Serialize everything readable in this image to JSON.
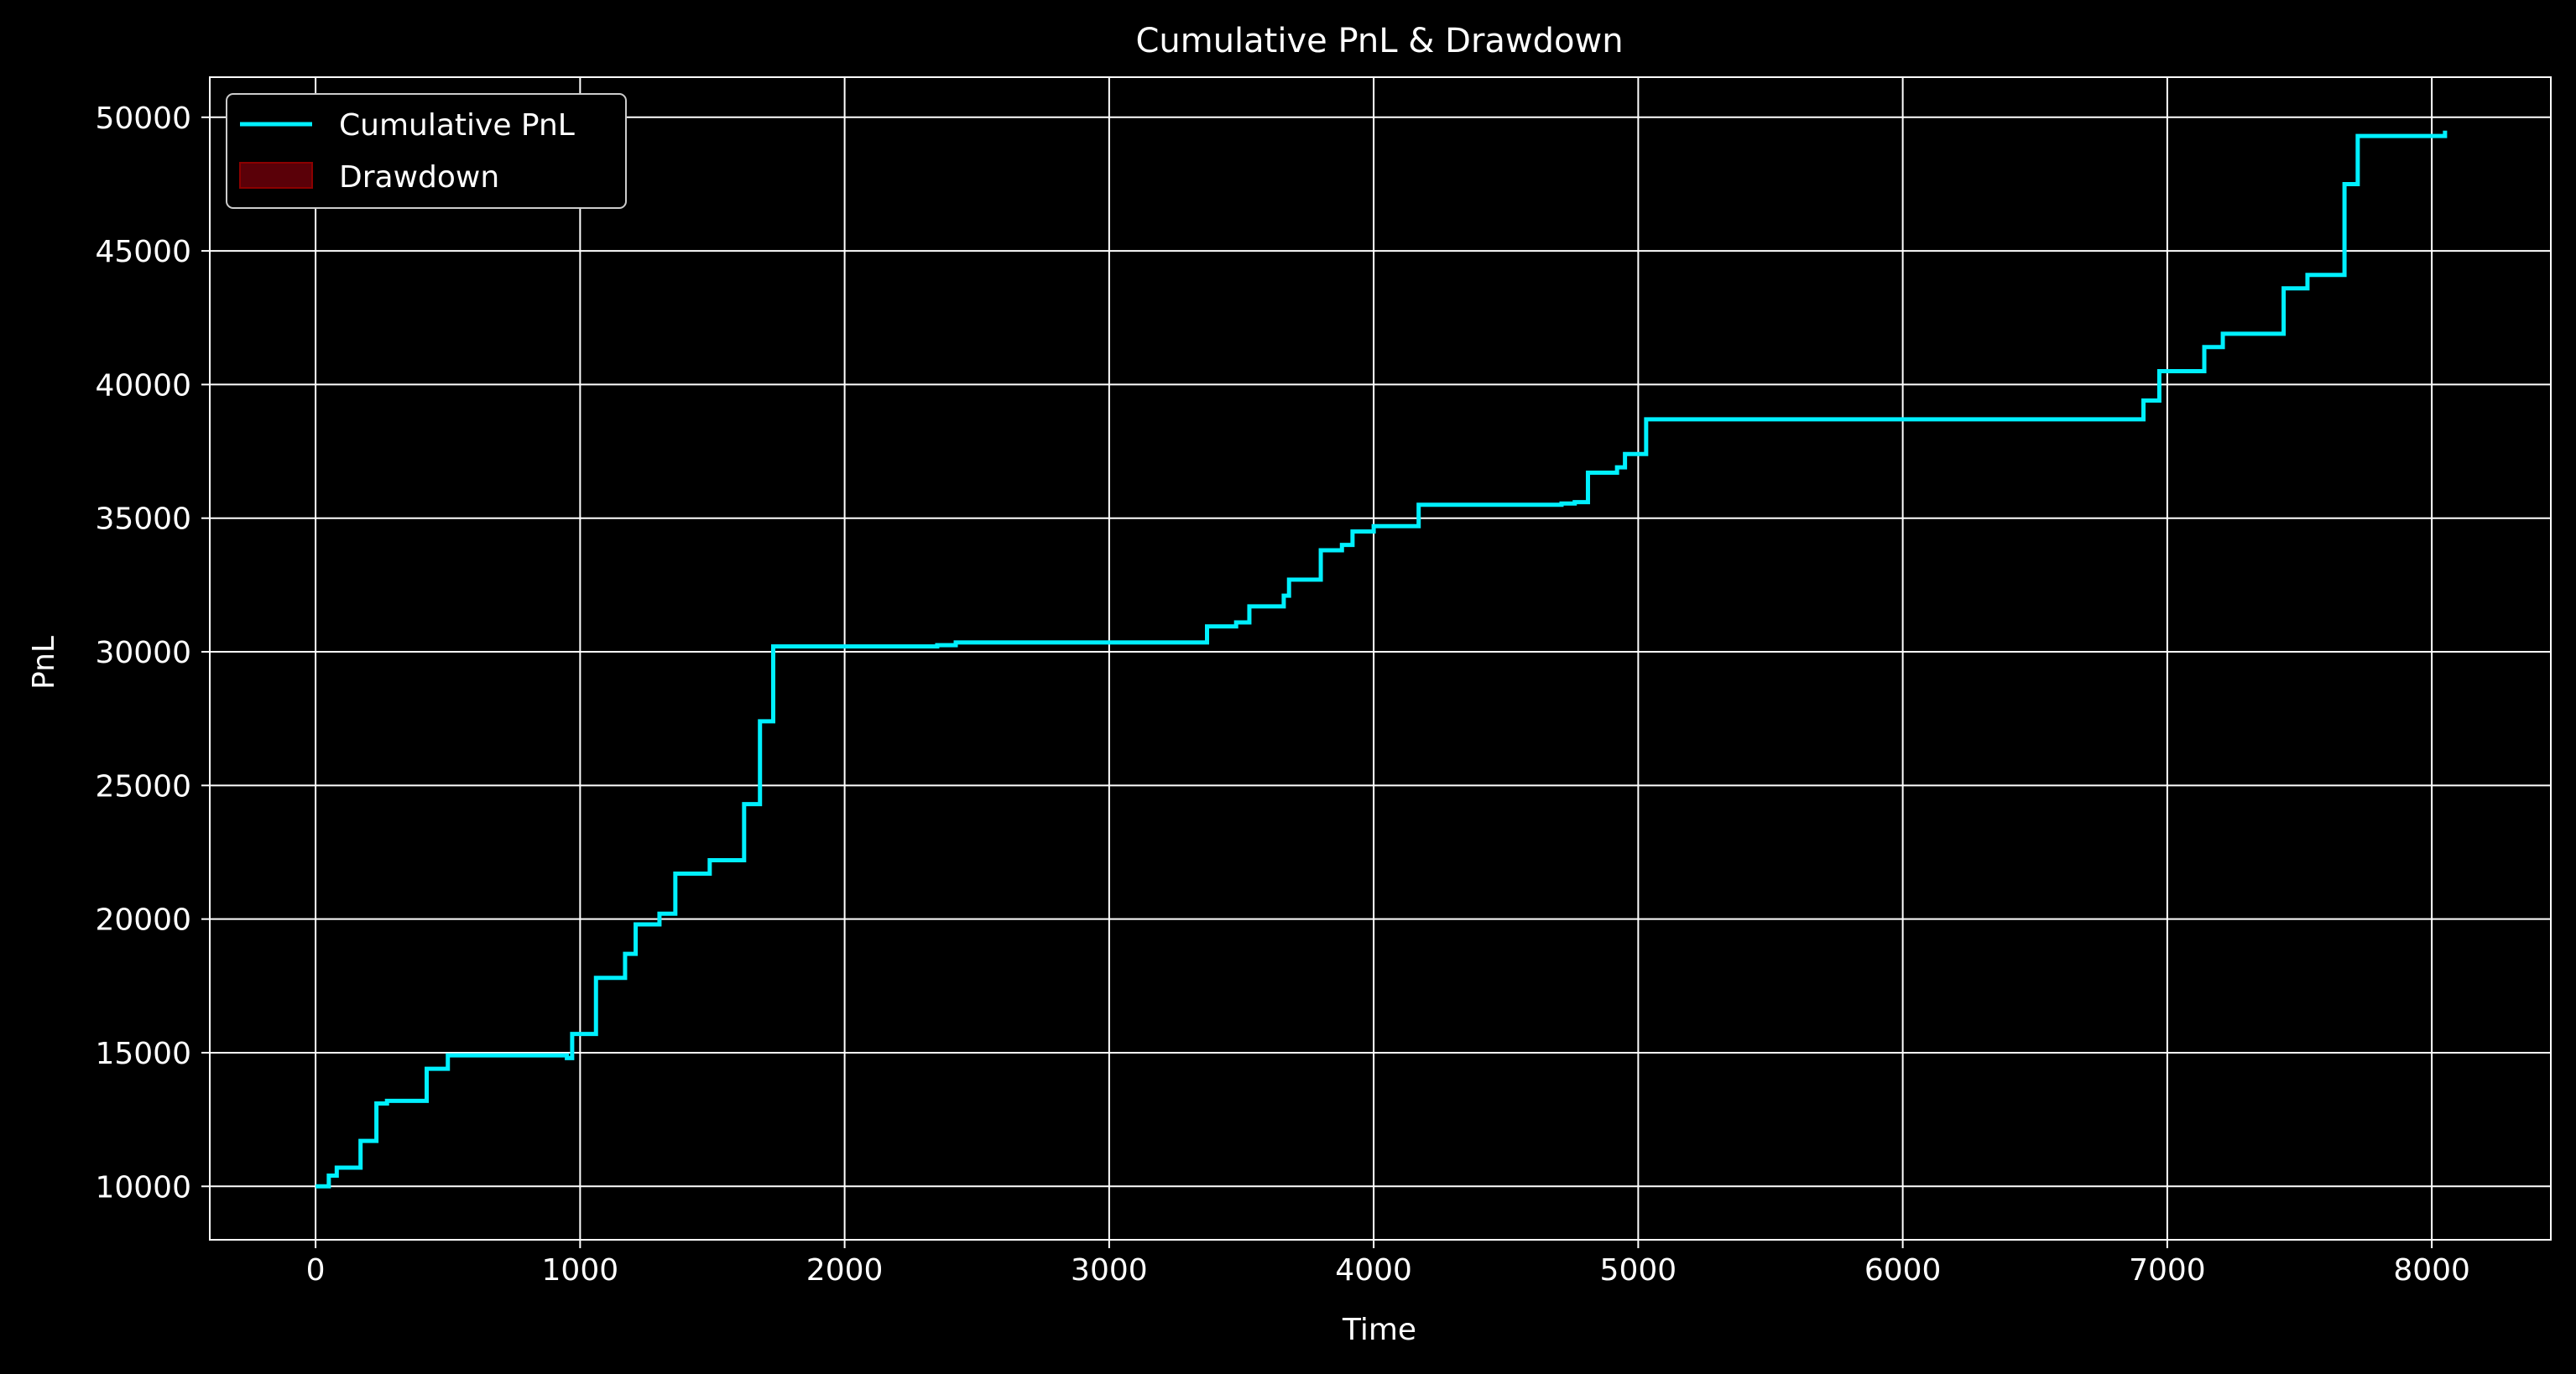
{
  "chart_data": {
    "type": "line",
    "title": "Cumulative PnL & Drawdown",
    "xlabel": "Time",
    "ylabel": "PnL",
    "xlim": [
      -400,
      8450
    ],
    "ylim": [
      8000,
      51500
    ],
    "xticks": [
      0,
      1000,
      2000,
      3000,
      4000,
      5000,
      6000,
      7000,
      8000
    ],
    "yticks": [
      10000,
      15000,
      20000,
      25000,
      30000,
      35000,
      40000,
      45000,
      50000
    ],
    "grid": true,
    "legend_position": "top-left",
    "legend": [
      {
        "label": "Cumulative PnL",
        "kind": "line",
        "color": "#00f0ff"
      },
      {
        "label": "Drawdown",
        "kind": "patch",
        "color": "#8b0000"
      }
    ],
    "series": [
      {
        "name": "Cumulative PnL",
        "color": "#00f0ff",
        "step": true,
        "x": [
          0,
          50,
          80,
          170,
          230,
          270,
          420,
          500,
          950,
          970,
          1060,
          1170,
          1210,
          1300,
          1360,
          1490,
          1620,
          1680,
          1730,
          2350,
          2420,
          3370,
          3480,
          3530,
          3660,
          3680,
          3800,
          3880,
          3920,
          4000,
          4170,
          4710,
          4760,
          4810,
          4920,
          4950,
          5030,
          6910,
          6970,
          7140,
          7210,
          7440,
          7530,
          7670,
          7720,
          8050
        ],
        "y": [
          10000,
          10400,
          10700,
          11700,
          13100,
          13200,
          14400,
          14900,
          14800,
          15700,
          17800,
          18700,
          19800,
          20200,
          21700,
          22200,
          24300,
          27400,
          30200,
          30250,
          30350,
          30950,
          31100,
          31700,
          32100,
          32700,
          33800,
          34000,
          34500,
          34700,
          35500,
          35550,
          35600,
          36700,
          36900,
          37400,
          38700,
          39400,
          40500,
          41400,
          41900,
          43600,
          44100,
          47500,
          49300,
          49500
        ]
      }
    ]
  }
}
